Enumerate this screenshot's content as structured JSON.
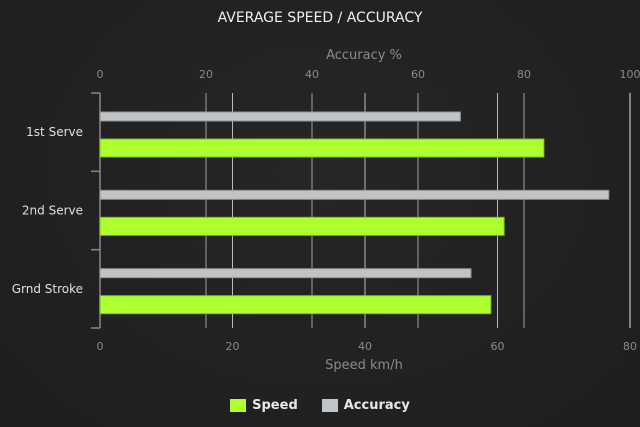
{
  "chart_data": {
    "type": "bar",
    "orientation": "horizontal",
    "title": "AVERAGE SPEED / ACCURACY",
    "categories": [
      "1st Serve",
      "2nd Serve",
      "Grnd Stroke"
    ],
    "series": [
      {
        "name": "Speed",
        "axis": "bottom",
        "color": "#adff2f",
        "values": [
          67,
          61,
          59
        ]
      },
      {
        "name": "Accuracy",
        "axis": "top",
        "color": "#c0c4c6",
        "values": [
          68,
          96,
          70
        ]
      }
    ],
    "top_axis": {
      "label": "Accuracy %",
      "range": [
        0,
        100
      ],
      "ticks": [
        "0",
        "20",
        "40",
        "60",
        "80",
        "100"
      ]
    },
    "bottom_axis": {
      "label": "Speed km/h",
      "range": [
        0,
        80
      ],
      "ticks": [
        "0",
        "20",
        "40",
        "60",
        "80"
      ]
    },
    "grid": true,
    "legend": "bottom"
  }
}
